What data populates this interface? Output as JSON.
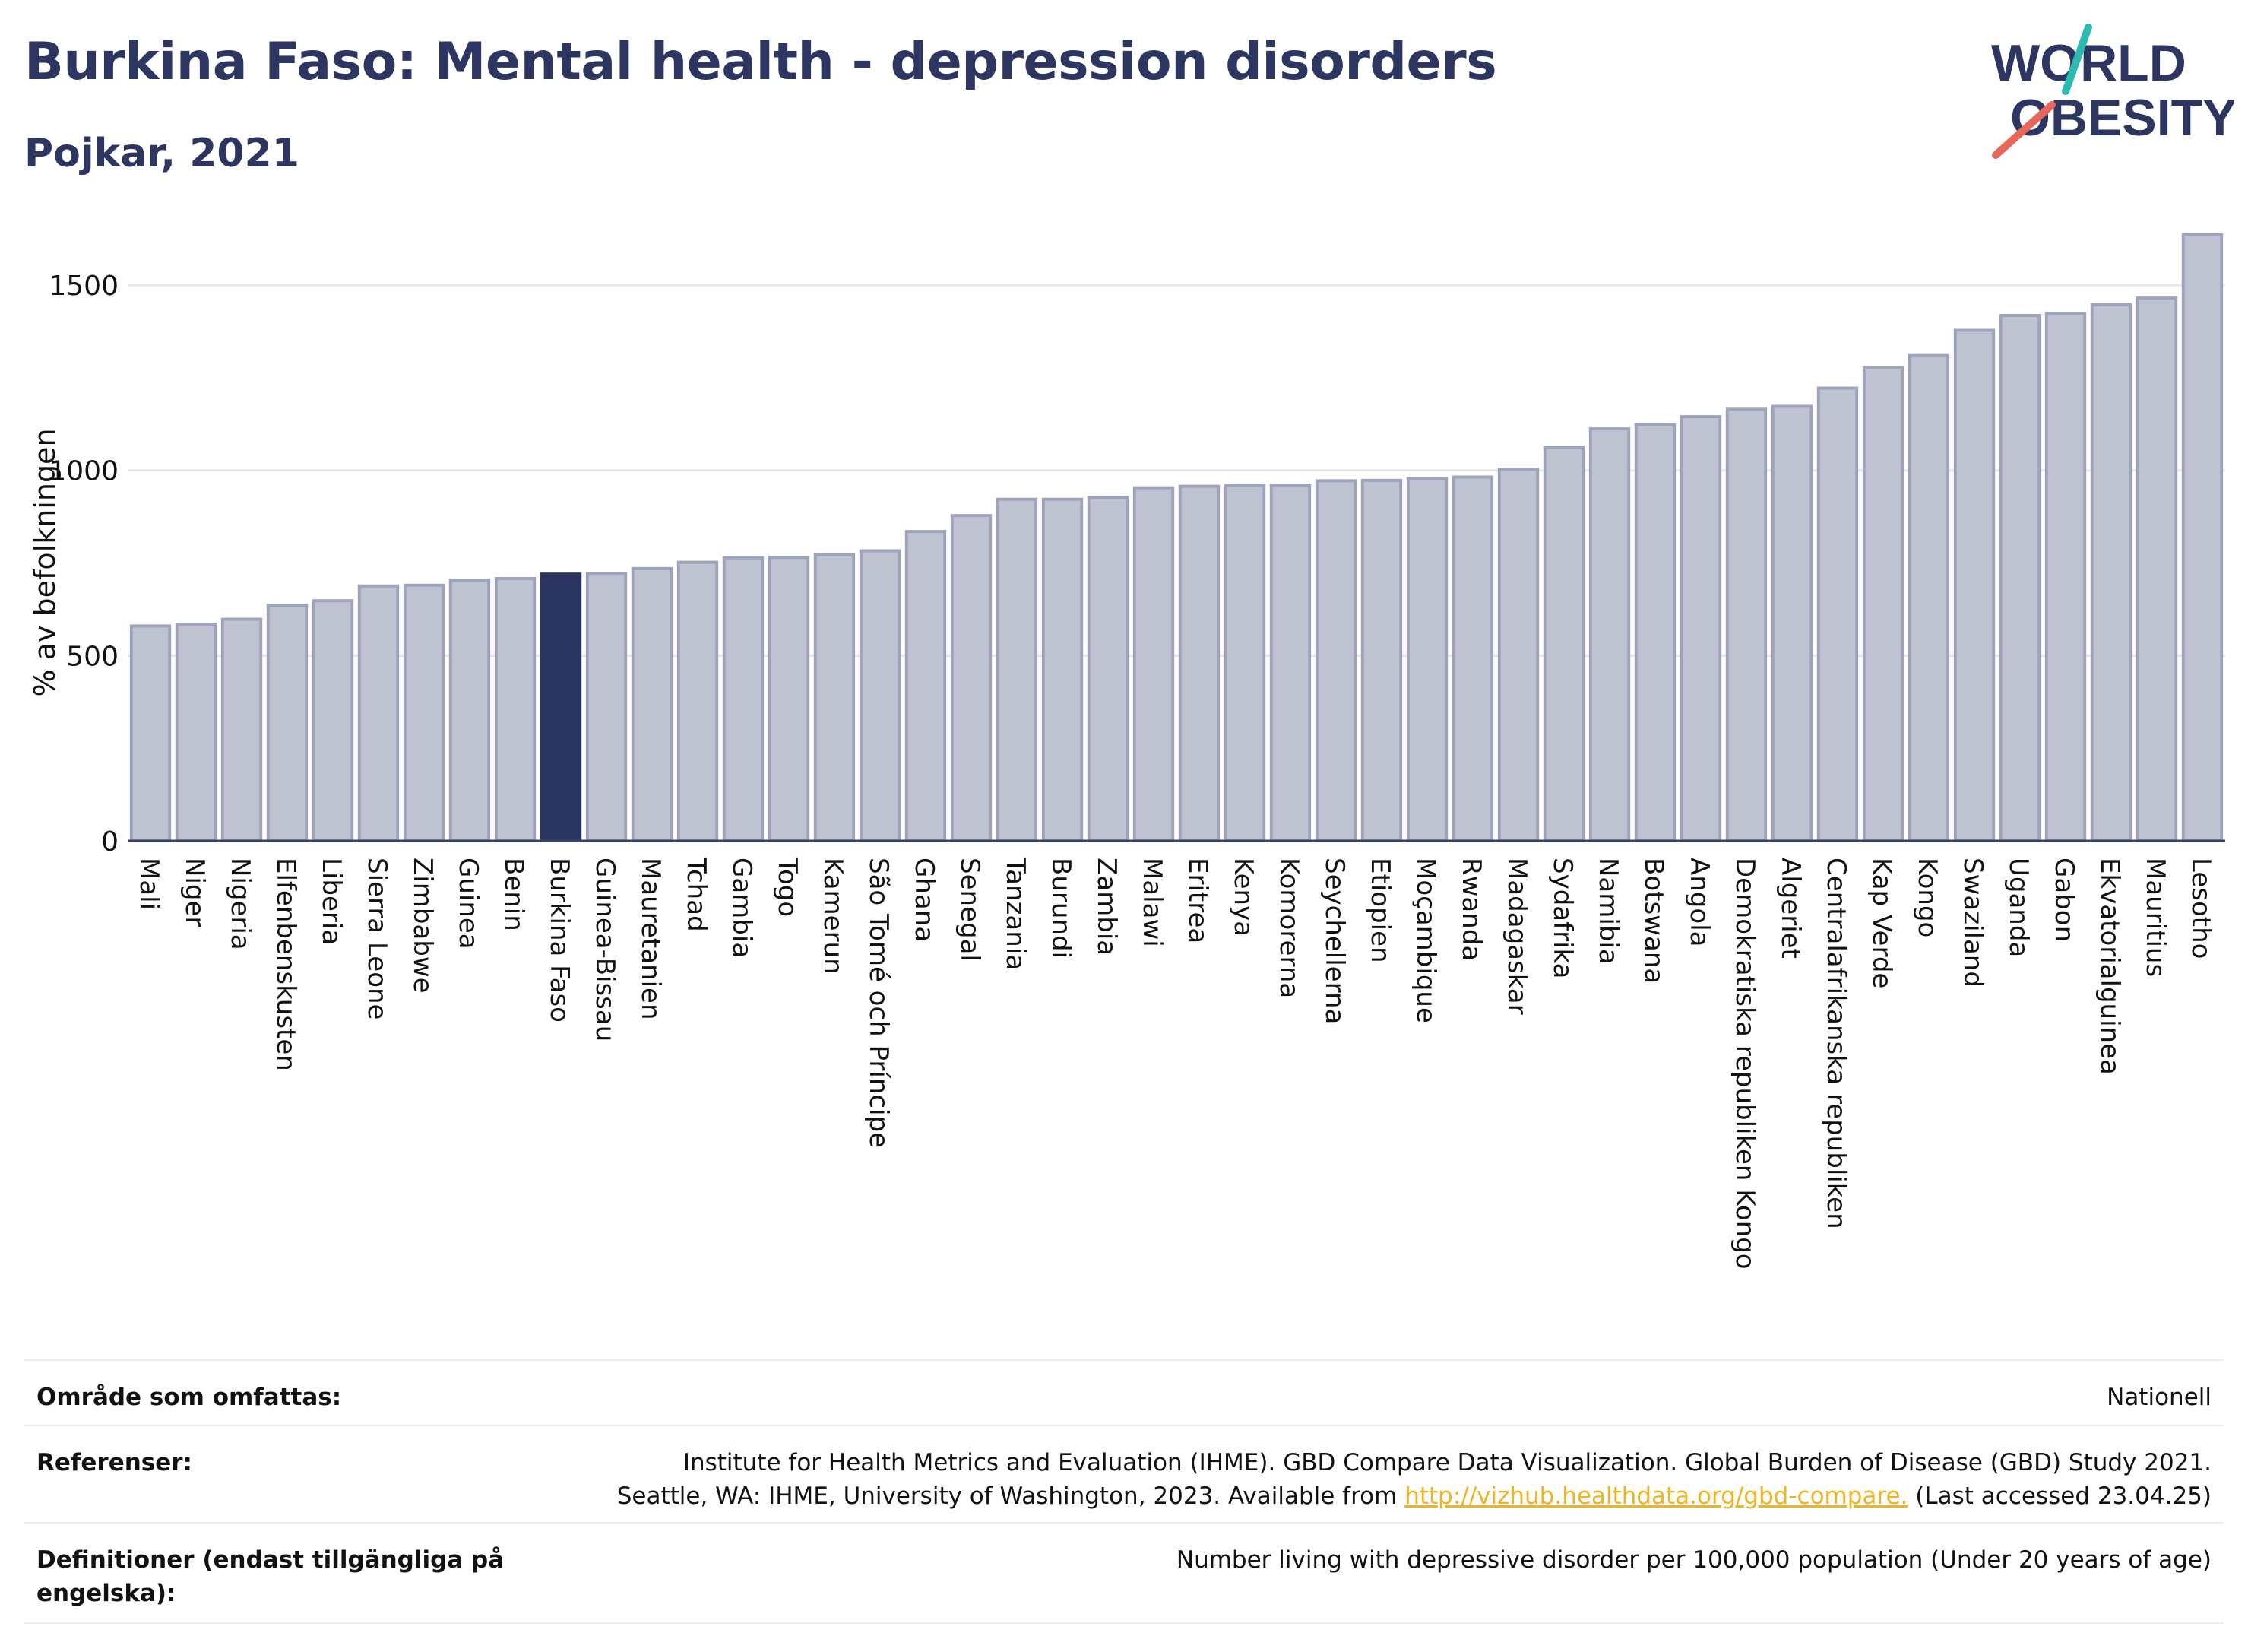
{
  "header": {
    "title": "Burkina Faso: Mental health - depression disorders",
    "subtitle": "Pojkar, 2021",
    "logo_line1": "WORLD",
    "logo_line2": "OBESITY"
  },
  "colors": {
    "title": "#2c3660",
    "bar": "#bfc3d1",
    "bar_stroke": "#9ea4bb",
    "highlight": "#2a3560",
    "grid": "#e6e8ee",
    "axis": "#3a4260",
    "logo_teal": "#2bbbb0",
    "logo_red": "#e8675a",
    "link": "#f0b323"
  },
  "chart_data": {
    "type": "bar",
    "highlight": "Burkina Faso",
    "ylabel": "% av befolkningen",
    "ylim": [
      0,
      1650
    ],
    "yticks": [
      0,
      500,
      1000,
      1500
    ],
    "grid": true,
    "categories": [
      "Mali",
      "Niger",
      "Nigeria",
      "Elfenbenskusten",
      "Liberia",
      "Sierra Leone",
      "Zimbabwe",
      "Guinea",
      "Benin",
      "Burkina Faso",
      "Guinea-Bissau",
      "Mauretanien",
      "Tchad",
      "Gambia",
      "Togo",
      "Kamerun",
      "São Tomé och Príncipe",
      "Ghana",
      "Senegal",
      "Tanzania",
      "Burundi",
      "Zambia",
      "Malawi",
      "Eritrea",
      "Kenya",
      "Komorerna",
      "Seychellerna",
      "Etiopien",
      "Moçambique",
      "Rwanda",
      "Madagaskar",
      "Sydafrika",
      "Namibia",
      "Botswana",
      "Angola",
      "Demokratiska republiken Kongo",
      "Algeriet",
      "Centralafrikanska republiken",
      "Kap Verde",
      "Kongo",
      "Swaziland",
      "Uganda",
      "Gabon",
      "Ekvatorialguinea",
      "Mauritius",
      "Lesotho"
    ],
    "values": [
      580,
      585,
      598,
      636,
      648,
      688,
      690,
      704,
      708,
      720,
      722,
      735,
      752,
      764,
      765,
      772,
      783,
      835,
      878,
      922,
      922,
      927,
      953,
      957,
      959,
      960,
      972,
      973,
      978,
      982,
      1003,
      1063,
      1112,
      1123,
      1145,
      1165,
      1173,
      1222,
      1277,
      1312,
      1378,
      1418,
      1423,
      1447,
      1465,
      1636
    ]
  },
  "footer": {
    "area_label": "Område som omfattas:",
    "area_value": "Nationell",
    "ref_label": "Referenser:",
    "ref_line1": "Institute for Health Metrics and Evaluation (IHME). GBD Compare Data Visualization. Global Burden of Disease (GBD) Study 2021.",
    "ref_line2_pre": "Seattle, WA: IHME, University of Washington, 2023. Available from",
    "ref_link": "http://vizhub.healthdata.org/gbd-compare.",
    "ref_line2_post": "(Last accessed 23.04.25)",
    "def_label": "Definitioner (endast tillgängliga på engelska):",
    "def_value": "Number living with depressive disorder per 100,000 population (Under 20 years of age)"
  }
}
